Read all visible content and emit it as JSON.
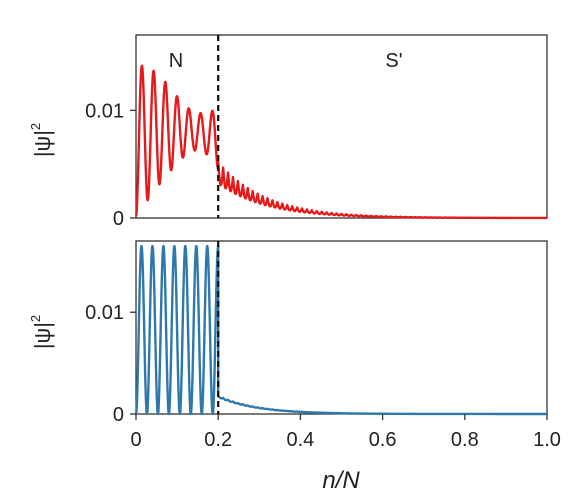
{
  "chart_data": [
    {
      "type": "line",
      "ylabel": "|ψ|²",
      "ylabel_main": "|ψ|",
      "ylabel_sup": "2",
      "xlim": [
        0,
        1.0
      ],
      "ylim": [
        0,
        0.017
      ],
      "yticks": [
        0,
        0.01
      ],
      "ytick_labels": [
        "0",
        "0.01"
      ],
      "show_xtick_labels": false,
      "boundary_x": 0.2,
      "region_labels": [
        "N",
        "S'"
      ],
      "grid": false,
      "series": [
        {
          "color": "#e8191a",
          "normal_region": {
            "x_end": 0.2,
            "oscillation_periods": 7,
            "envelope_x": [
              0,
              0.02,
              0.05,
              0.08,
              0.11,
              0.14,
              0.17,
              0.2
            ],
            "envelope_max": [
              0.014,
              0.0142,
              0.0135,
              0.0123,
              0.0108,
              0.0098,
              0.0097,
              0.0102
            ],
            "envelope_min": [
              0.0002,
              0.0012,
              0.0028,
              0.0042,
              0.0055,
              0.0063,
              0.006,
              0.0045
            ]
          },
          "superconductor_region": {
            "x_start": 0.2,
            "value_at_boundary": 0.0052,
            "decay_length": 0.115,
            "oscillation_amplitude_fraction": 0.38,
            "oscillation_period": 0.012
          }
        }
      ]
    },
    {
      "type": "line",
      "xlabel": "n/N",
      "ylabel": "|ψ|²",
      "ylabel_main": "|ψ|",
      "ylabel_sup": "2",
      "xlim": [
        0,
        1.0
      ],
      "ylim": [
        0,
        0.017
      ],
      "xticks": [
        0,
        0.2,
        0.4,
        0.6,
        0.8,
        1.0
      ],
      "xtick_labels": [
        "0",
        "0.2",
        "0.4",
        "0.6",
        "0.8",
        "1.0"
      ],
      "yticks": [
        0,
        0.01
      ],
      "ytick_labels": [
        "0",
        "0.01"
      ],
      "boundary_x": 0.2,
      "grid": false,
      "series": [
        {
          "color": "#2e78ad",
          "normal_region": {
            "x_end": 0.2,
            "oscillation_periods": 7.5,
            "peak_value": 0.0165,
            "min_value": 0.0
          },
          "superconductor_region": {
            "x_start": 0.2,
            "value_at_boundary": 0.0018,
            "decay_length": 0.095,
            "oscillation_amplitude_fraction": 0.08,
            "oscillation_period": 0.012
          }
        }
      ]
    }
  ]
}
